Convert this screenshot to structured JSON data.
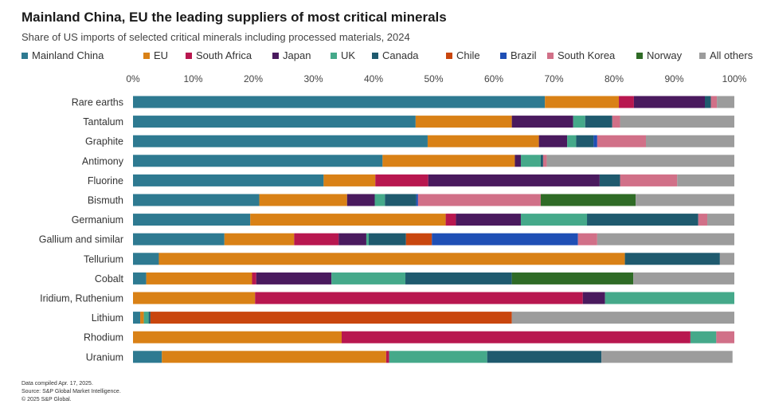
{
  "header": {
    "title": "Mainland China, EU the leading suppliers of most critical minerals",
    "subtitle": "Share of US imports of selected critical minerals including processed materials, 2024"
  },
  "footer": {
    "line1": "Data compiled Apr. 17, 2025.",
    "line2": "Source: S&P Global Market Intelligence.",
    "line3": "© 2025 S&P Global."
  },
  "chart_data": {
    "type": "bar",
    "orientation": "horizontal",
    "stacked": true,
    "xlim": [
      0,
      100
    ],
    "x_ticks": [
      "0%",
      "10%",
      "20%",
      "30%",
      "40%",
      "50%",
      "60%",
      "70%",
      "80%",
      "90%",
      "100%"
    ],
    "legend_position": "top",
    "grid": false,
    "categories": [
      "Rare earths",
      "Tantalum",
      "Graphite",
      "Antimony",
      "Fluorine",
      "Bismuth",
      "Germanium",
      "Gallium and similar",
      "Tellurium",
      "Cobalt",
      "Iridium, Ruthenium",
      "Lithium",
      "Rhodium",
      "Uranium"
    ],
    "series": [
      {
        "name": "Mainland China",
        "color": "#2e7a91",
        "values": [
          68.5,
          47.0,
          49.0,
          41.5,
          31.7,
          21.0,
          19.5,
          15.2,
          4.3,
          2.2,
          0,
          1.2,
          0,
          4.8
        ]
      },
      {
        "name": "EU",
        "color": "#d98116",
        "values": [
          12.3,
          16.0,
          18.5,
          22.0,
          8.6,
          14.6,
          32.5,
          11.6,
          77.5,
          17.6,
          20.3,
          0.6,
          34.7,
          37.3
        ]
      },
      {
        "name": "South Africa",
        "color": "#b8174f",
        "values": [
          2.5,
          0,
          0,
          0,
          8.8,
          0,
          1.7,
          7.4,
          0,
          0.7,
          54.5,
          0,
          58.0,
          0.5
        ]
      },
      {
        "name": "Japan",
        "color": "#4a1a5e",
        "values": [
          11.8,
          10.2,
          4.7,
          1.0,
          28.5,
          4.6,
          10.8,
          4.6,
          0,
          12.5,
          3.7,
          0,
          0,
          0
        ]
      },
      {
        "name": "UK",
        "color": "#45a98a",
        "values": [
          0,
          2.0,
          1.5,
          3.3,
          0,
          1.7,
          11.0,
          0.4,
          0,
          12.3,
          21.5,
          0.8,
          4.3,
          16.3
        ]
      },
      {
        "name": "Canada",
        "color": "#1f5a6e",
        "values": [
          1.0,
          4.5,
          2.9,
          0.4,
          3.4,
          5.2,
          18.5,
          6.2,
          15.8,
          17.7,
          0,
          0.3,
          0,
          19.0
        ]
      },
      {
        "name": "Chile",
        "color": "#c9460e",
        "values": [
          0,
          0,
          0,
          0,
          0,
          0,
          0,
          4.3,
          0,
          0,
          0,
          60.1,
          0,
          0
        ]
      },
      {
        "name": "Brazil",
        "color": "#1f4fb5",
        "values": [
          0,
          0,
          0.6,
          0,
          0,
          0.3,
          0,
          24.3,
          0,
          0,
          0,
          0,
          0,
          0
        ]
      },
      {
        "name": "South Korea",
        "color": "#d17088",
        "values": [
          1.0,
          1.3,
          8.1,
          0.6,
          9.5,
          20.4,
          1.5,
          3.2,
          0,
          0,
          0,
          0,
          3.0,
          0
        ]
      },
      {
        "name": "Norway",
        "color": "#2f6b26",
        "values": [
          0,
          0,
          0,
          0,
          0,
          15.8,
          0,
          0,
          0,
          20.2,
          0,
          0,
          0,
          0
        ]
      },
      {
        "name": "All others",
        "color": "#9c9c9c",
        "values": [
          2.9,
          19.0,
          14.7,
          31.2,
          9.5,
          16.4,
          4.5,
          22.8,
          2.4,
          16.8,
          0,
          37.0,
          0,
          21.8
        ]
      }
    ]
  }
}
